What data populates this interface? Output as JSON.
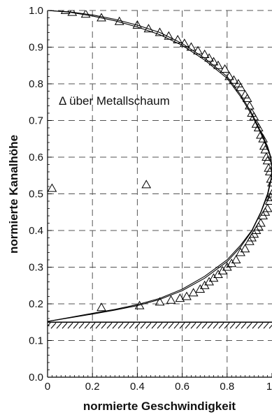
{
  "chart_data": {
    "type": "scatter",
    "xlabel": "normierte Geschwindigkeit",
    "ylabel": "normierte Kanalhöhe",
    "xlim": [
      0,
      1
    ],
    "ylim": [
      0,
      1
    ],
    "x_ticks": [
      "0",
      "0.2",
      "0.4",
      "0.6",
      "0.8",
      "1"
    ],
    "y_ticks": [
      "0.0",
      "0.1",
      "0.2",
      "0.3",
      "0.4",
      "0.5",
      "0.6",
      "0.7",
      "0.8",
      "0.9",
      "1.0"
    ],
    "grid": "dashed",
    "annotation": "Δ über Metallschaum",
    "wall_level": 0.15,
    "series": [
      {
        "marker": "open-triangle",
        "x": [
          0.08,
          0.11,
          0.17,
          0.24,
          0.32,
          0.4,
          0.45,
          0.5,
          0.54,
          0.58,
          0.61,
          0.64,
          0.67,
          0.7,
          0.72,
          0.74,
          0.76,
          0.79,
          0.81,
          0.83,
          0.85,
          0.86,
          0.88,
          0.89,
          0.9,
          0.91,
          0.92,
          0.93,
          0.94,
          0.95,
          0.96,
          0.965,
          0.97,
          0.975,
          0.98,
          0.985,
          0.99,
          0.995,
          1.0,
          1.0,
          0.995,
          0.99,
          0.98,
          0.97,
          0.96,
          0.95,
          0.94,
          0.93,
          0.92,
          0.91,
          0.9,
          0.88,
          0.86,
          0.84,
          0.82,
          0.8,
          0.78,
          0.76,
          0.74,
          0.72,
          0.7,
          0.68,
          0.65,
          0.62,
          0.59,
          0.55,
          0.5,
          0.41,
          0.24,
          0.02,
          0.44
        ],
        "y": [
          1.0,
          0.995,
          0.99,
          0.98,
          0.97,
          0.96,
          0.95,
          0.94,
          0.93,
          0.92,
          0.91,
          0.9,
          0.89,
          0.88,
          0.87,
          0.86,
          0.85,
          0.84,
          0.82,
          0.81,
          0.8,
          0.79,
          0.77,
          0.76,
          0.74,
          0.72,
          0.71,
          0.69,
          0.68,
          0.66,
          0.65,
          0.63,
          0.62,
          0.6,
          0.59,
          0.57,
          0.56,
          0.54,
          0.53,
          0.5,
          0.49,
          0.48,
          0.46,
          0.45,
          0.44,
          0.42,
          0.41,
          0.4,
          0.39,
          0.38,
          0.37,
          0.35,
          0.34,
          0.32,
          0.31,
          0.3,
          0.29,
          0.28,
          0.27,
          0.26,
          0.25,
          0.24,
          0.23,
          0.22,
          0.215,
          0.21,
          0.205,
          0.195,
          0.19,
          0.515,
          0.525
        ]
      },
      {
        "marker": "line",
        "x": [
          0.0,
          0.1,
          0.2,
          0.3,
          0.4,
          0.5,
          0.6,
          0.7,
          0.8,
          0.86,
          0.91,
          0.95,
          0.98,
          0.995,
          1.0,
          0.995,
          0.98,
          0.95,
          0.91,
          0.86,
          0.8,
          0.7,
          0.6,
          0.5,
          0.4,
          0.3,
          0.2,
          0.1,
          0.0
        ],
        "y": [
          1.0,
          0.996,
          0.988,
          0.976,
          0.96,
          0.94,
          0.91,
          0.87,
          0.82,
          0.77,
          0.72,
          0.67,
          0.63,
          0.6,
          0.57,
          0.54,
          0.5,
          0.45,
          0.4,
          0.36,
          0.32,
          0.275,
          0.24,
          0.215,
          0.198,
          0.185,
          0.174,
          0.163,
          0.152
        ]
      },
      {
        "marker": "line",
        "x": [
          0.0,
          0.1,
          0.2,
          0.3,
          0.4,
          0.5,
          0.6,
          0.7,
          0.8,
          0.86,
          0.91,
          0.95,
          0.98,
          0.995,
          1.0,
          0.995,
          0.98,
          0.95,
          0.91,
          0.86,
          0.8,
          0.7,
          0.6,
          0.5,
          0.4,
          0.3,
          0.2,
          0.1,
          0.0
        ],
        "y": [
          1.0,
          0.995,
          0.985,
          0.972,
          0.955,
          0.934,
          0.905,
          0.865,
          0.815,
          0.765,
          0.715,
          0.665,
          0.625,
          0.595,
          0.565,
          0.535,
          0.495,
          0.448,
          0.398,
          0.355,
          0.315,
          0.27,
          0.236,
          0.212,
          0.195,
          0.183,
          0.172,
          0.162,
          0.152
        ]
      }
    ]
  }
}
